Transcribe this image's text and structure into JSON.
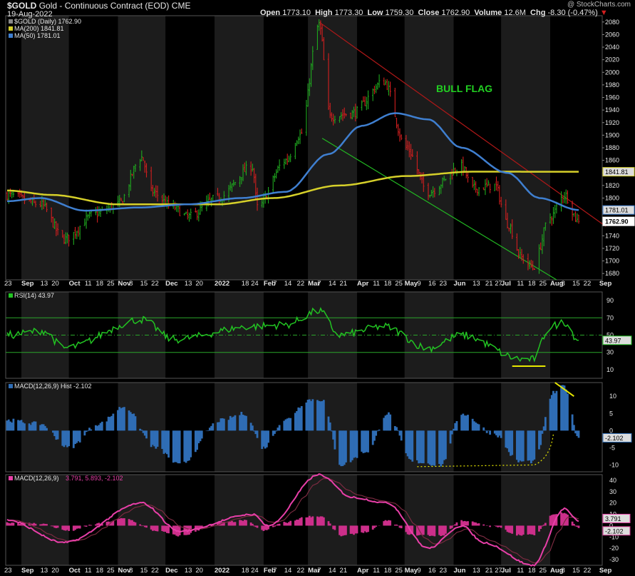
{
  "header": {
    "symbol": "$GOLD",
    "name": "Gold - Continuous Contract (EOD)",
    "exchange": "CME",
    "date": "19-Aug-2022",
    "open_label": "Open",
    "open": "1773.10",
    "high_label": "High",
    "high": "1773.30",
    "low_label": "Low",
    "low": "1759.30",
    "close_label": "Close",
    "close": "1762.90",
    "volume_label": "Volume",
    "volume": "12.6M",
    "chg_label": "Chg",
    "chg": "-8.30 (-0.47%)",
    "watermark": "@ StockCharts.com"
  },
  "legends": {
    "price": "$GOLD (Daily) 1762.90",
    "ma200": "MA(200) 1841.81",
    "ma50": "MA(50) 1781.01",
    "rsi": "RSI(14) 43.97",
    "macd_hist": "MACD(12,26,9) Hist -2.102",
    "macd_name": "MACD(12,26,9)",
    "macd_vals": "3.791, 5.893, -2.102"
  },
  "annotation": "BULL FLAG",
  "colors": {
    "bg": "#000000",
    "stripe": "#1c1c1c",
    "up": "#1fa81f",
    "down": "#d21f1f",
    "ma200": "#d6d02a",
    "ma50": "#3f7fd0",
    "rsi": "#22c322",
    "rsi_bands": "#2aa52a",
    "hist": "#2f6db5",
    "macd_line": "#e83fa8",
    "signal_line": "#7a2a40",
    "macd_hist": "#cc2f8a",
    "channel_upper": "#b01818",
    "channel_lower": "#22b822",
    "highlight": "#e8e800",
    "badge_close": "#ffffff"
  },
  "x_axis_labels": [
    "23",
    "Sep",
    "13",
    "20",
    "Oct",
    "11",
    "18",
    "25",
    "Nov",
    "8",
    "15",
    "22",
    "Dec",
    "13",
    "20",
    "2022",
    "18",
    "24",
    "Feb",
    "7",
    "14",
    "22",
    "Mar",
    "7",
    "14",
    "21",
    "Apr",
    "11",
    "18",
    "25",
    "May",
    "9",
    "16",
    "23",
    "Jun",
    "13",
    "21",
    "27",
    "Jul",
    "11",
    "18",
    "25",
    "Aug",
    "8",
    "15",
    "22",
    "Sep"
  ],
  "price_axis": [
    "2080",
    "2060",
    "2040",
    "2020",
    "2000",
    "1980",
    "1960",
    "1940",
    "1920",
    "1900",
    "1880",
    "1860",
    "1840",
    "1820",
    "1800",
    "1780",
    "1760",
    "1740",
    "1720",
    "1700",
    "1680"
  ],
  "price_badges": [
    "1841.81",
    "1781.01",
    "1762.90"
  ],
  "rsi_axis": [
    "90",
    "70",
    "50",
    "30",
    "10"
  ],
  "rsi_badge": "43.97",
  "hist_axis": [
    "10",
    "5",
    "0",
    "-5",
    "-10"
  ],
  "hist_badge": "-2.102",
  "macd_axis": [
    "40",
    "30",
    "20",
    "10",
    "0",
    "-10",
    "-20",
    "-30"
  ],
  "macd_badges": [
    "3.791",
    "-2.102"
  ],
  "chart_data": {
    "type": "line",
    "title": "$GOLD Gold - Continuous Contract (EOD)",
    "price": {
      "key_points": [
        {
          "date": "2021-08-23",
          "close": 1805
        },
        {
          "date": "2021-09-13",
          "close": 1790
        },
        {
          "date": "2021-09-28",
          "close": 1735
        },
        {
          "date": "2021-10-18",
          "close": 1775
        },
        {
          "date": "2021-11-01",
          "close": 1790
        },
        {
          "date": "2021-11-16",
          "close": 1865
        },
        {
          "date": "2021-11-22",
          "close": 1810
        },
        {
          "date": "2021-12-06",
          "close": 1785
        },
        {
          "date": "2021-12-15",
          "close": 1770
        },
        {
          "date": "2022-01-03",
          "close": 1800
        },
        {
          "date": "2022-01-25",
          "close": 1850
        },
        {
          "date": "2022-01-28",
          "close": 1785
        },
        {
          "date": "2022-02-15",
          "close": 1860
        },
        {
          "date": "2022-02-24",
          "close": 1900
        },
        {
          "date": "2022-03-08",
          "close": 2075
        },
        {
          "date": "2022-03-15",
          "close": 1930
        },
        {
          "date": "2022-03-29",
          "close": 1935
        },
        {
          "date": "2022-04-18",
          "close": 1985
        },
        {
          "date": "2022-05-02",
          "close": 1880
        },
        {
          "date": "2022-05-16",
          "close": 1810
        },
        {
          "date": "2022-06-06",
          "close": 1850
        },
        {
          "date": "2022-06-13",
          "close": 1815
        },
        {
          "date": "2022-06-27",
          "close": 1820
        },
        {
          "date": "2022-07-05",
          "close": 1760
        },
        {
          "date": "2022-07-14",
          "close": 1705
        },
        {
          "date": "2022-07-21",
          "close": 1690
        },
        {
          "date": "2022-08-01",
          "close": 1770
        },
        {
          "date": "2022-08-10",
          "close": 1805
        },
        {
          "date": "2022-08-19",
          "close": 1762.9
        }
      ],
      "ylim": [
        1670,
        2090
      ],
      "last": {
        "open": 1773.1,
        "high": 1773.3,
        "low": 1759.3,
        "close": 1762.9
      }
    },
    "ma200": {
      "key_points": [
        {
          "date": "2021-08-23",
          "value": 1812
        },
        {
          "date": "2021-09-20",
          "value": 1805
        },
        {
          "date": "2021-11-01",
          "value": 1790
        },
        {
          "date": "2022-01-03",
          "value": 1790
        },
        {
          "date": "2022-02-07",
          "value": 1800
        },
        {
          "date": "2022-03-21",
          "value": 1820
        },
        {
          "date": "2022-05-02",
          "value": 1835
        },
        {
          "date": "2022-06-13",
          "value": 1842
        },
        {
          "date": "2022-08-19",
          "value": 1841.81
        }
      ]
    },
    "ma50": {
      "key_points": [
        {
          "date": "2021-08-23",
          "value": 1795
        },
        {
          "date": "2021-09-13",
          "value": 1800
        },
        {
          "date": "2021-10-11",
          "value": 1780
        },
        {
          "date": "2021-11-15",
          "value": 1785
        },
        {
          "date": "2021-12-15",
          "value": 1790
        },
        {
          "date": "2022-01-18",
          "value": 1800
        },
        {
          "date": "2022-02-15",
          "value": 1810
        },
        {
          "date": "2022-03-14",
          "value": 1870
        },
        {
          "date": "2022-04-04",
          "value": 1915
        },
        {
          "date": "2022-04-25",
          "value": 1935
        },
        {
          "date": "2022-05-16",
          "value": 1925
        },
        {
          "date": "2022-06-06",
          "value": 1880
        },
        {
          "date": "2022-07-05",
          "value": 1840
        },
        {
          "date": "2022-07-25",
          "value": 1800
        },
        {
          "date": "2022-08-19",
          "value": 1781.01
        }
      ]
    },
    "rsi": {
      "key_points": [
        {
          "date": "2021-08-23",
          "value": 50
        },
        {
          "date": "2021-09-15",
          "value": 55
        },
        {
          "date": "2021-09-28",
          "value": 35
        },
        {
          "date": "2021-11-16",
          "value": 68
        },
        {
          "date": "2021-12-06",
          "value": 45
        },
        {
          "date": "2022-01-25",
          "value": 60
        },
        {
          "date": "2022-02-15",
          "value": 62
        },
        {
          "date": "2022-03-08",
          "value": 78
        },
        {
          "date": "2022-03-21",
          "value": 50
        },
        {
          "date": "2022-04-18",
          "value": 60
        },
        {
          "date": "2022-05-16",
          "value": 35
        },
        {
          "date": "2022-06-06",
          "value": 50
        },
        {
          "date": "2022-07-14",
          "value": 22
        },
        {
          "date": "2022-07-21",
          "value": 22
        },
        {
          "date": "2022-08-01",
          "value": 60
        },
        {
          "date": "2022-08-10",
          "value": 65
        },
        {
          "date": "2022-08-19",
          "value": 43.97
        }
      ],
      "ylim": [
        0,
        100
      ],
      "bands": [
        30,
        50,
        70
      ]
    },
    "macd_hist": {
      "key_points": [
        {
          "date": "2021-08-23",
          "value": 3
        },
        {
          "date": "2021-09-13",
          "value": 2
        },
        {
          "date": "2021-10-01",
          "value": -5
        },
        {
          "date": "2021-10-20",
          "value": 2
        },
        {
          "date": "2021-11-05",
          "value": 7
        },
        {
          "date": "2021-11-25",
          "value": -5
        },
        {
          "date": "2021-12-10",
          "value": -10
        },
        {
          "date": "2022-01-05",
          "value": 3
        },
        {
          "date": "2022-01-20",
          "value": 5
        },
        {
          "date": "2022-02-01",
          "value": -5
        },
        {
          "date": "2022-02-14",
          "value": 3
        },
        {
          "date": "2022-03-02",
          "value": 9
        },
        {
          "date": "2022-03-10",
          "value": 9
        },
        {
          "date": "2022-03-22",
          "value": -10
        },
        {
          "date": "2022-04-08",
          "value": -6
        },
        {
          "date": "2022-04-20",
          "value": 5
        },
        {
          "date": "2022-05-06",
          "value": -9
        },
        {
          "date": "2022-05-24",
          "value": -10
        },
        {
          "date": "2022-06-06",
          "value": 5
        },
        {
          "date": "2022-06-27",
          "value": -1
        },
        {
          "date": "2022-07-12",
          "value": -9
        },
        {
          "date": "2022-07-22",
          "value": -9
        },
        {
          "date": "2022-08-03",
          "value": 11
        },
        {
          "date": "2022-08-10",
          "value": 13
        },
        {
          "date": "2022-08-19",
          "value": -2.102
        }
      ],
      "ylim": [
        -12,
        14
      ]
    },
    "macd": {
      "key_points": [
        {
          "date": "2021-08-23",
          "value": 5
        },
        {
          "date": "2021-09-28",
          "value": -15
        },
        {
          "date": "2021-11-16",
          "value": 20
        },
        {
          "date": "2021-12-10",
          "value": -5
        },
        {
          "date": "2022-01-25",
          "value": 10
        },
        {
          "date": "2022-02-04",
          "value": 0
        },
        {
          "date": "2022-03-08",
          "value": 45
        },
        {
          "date": "2022-03-29",
          "value": 25
        },
        {
          "date": "2022-04-20",
          "value": 20
        },
        {
          "date": "2022-05-16",
          "value": -20
        },
        {
          "date": "2022-06-06",
          "value": 0
        },
        {
          "date": "2022-06-20",
          "value": -15
        },
        {
          "date": "2022-07-21",
          "value": -35
        },
        {
          "date": "2022-08-10",
          "value": 15
        },
        {
          "date": "2022-08-19",
          "value": 3.791
        }
      ],
      "signal_last": 5.893,
      "hist_last": -2.102,
      "ylim": [
        -35,
        45
      ]
    }
  }
}
